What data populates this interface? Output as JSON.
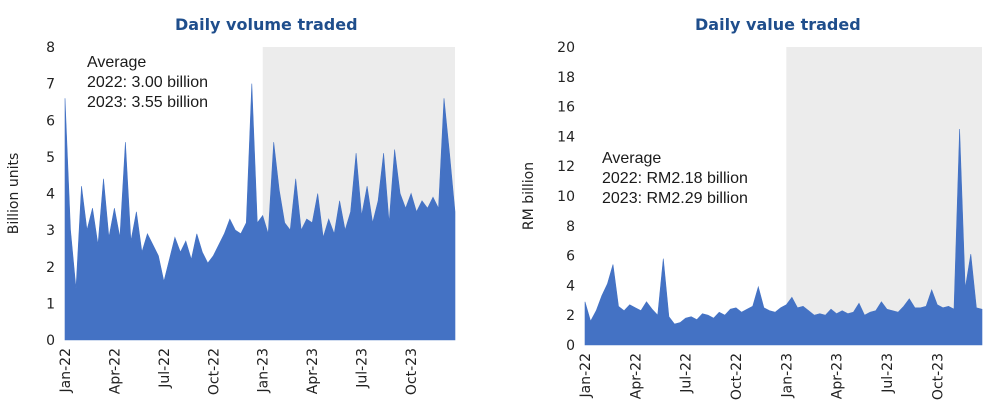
{
  "chart_data": [
    {
      "type": "area",
      "title": "Daily volume traded",
      "ylabel": "Billion units",
      "xlabel": "",
      "ylim": [
        0,
        8
      ],
      "yticks": [
        0,
        1,
        2,
        3,
        4,
        5,
        6,
        7,
        8
      ],
      "x_tick_labels": [
        "Jan-22",
        "Apr-22",
        "Jul-22",
        "Oct-22",
        "Jan-23",
        "Apr-23",
        "Jul-23",
        "Oct-23"
      ],
      "shaded_period": "Jan-23 to Dec-23",
      "annotation": [
        "Average",
        "2022: 3.00 billion",
        "2023: 3.55 billion"
      ],
      "color": "#4472c4",
      "shade_color": "#ececec",
      "x": [
        "Jan-22",
        "Jan-22",
        "Jan-22",
        "Feb-22",
        "Feb-22",
        "Feb-22",
        "Mar-22",
        "Mar-22",
        "Mar-22",
        "Apr-22",
        "Apr-22",
        "Apr-22",
        "May-22",
        "May-22",
        "May-22",
        "Jun-22",
        "Jun-22",
        "Jun-22",
        "Jul-22",
        "Jul-22",
        "Jul-22",
        "Aug-22",
        "Aug-22",
        "Aug-22",
        "Sep-22",
        "Sep-22",
        "Sep-22",
        "Oct-22",
        "Oct-22",
        "Oct-22",
        "Nov-22",
        "Nov-22",
        "Nov-22",
        "Dec-22",
        "Dec-22",
        "Dec-22",
        "Jan-23",
        "Jan-23",
        "Jan-23",
        "Feb-23",
        "Feb-23",
        "Feb-23",
        "Mar-23",
        "Mar-23",
        "Mar-23",
        "Apr-23",
        "Apr-23",
        "Apr-23",
        "May-23",
        "May-23",
        "May-23",
        "Jun-23",
        "Jun-23",
        "Jun-23",
        "Jul-23",
        "Jul-23",
        "Jul-23",
        "Aug-23",
        "Aug-23",
        "Aug-23",
        "Sep-23",
        "Sep-23",
        "Sep-23",
        "Oct-23",
        "Oct-23",
        "Oct-23",
        "Nov-23",
        "Nov-23",
        "Nov-23",
        "Dec-23",
        "Dec-23",
        "Dec-23"
      ],
      "values": [
        6.6,
        3.0,
        1.4,
        4.2,
        3.0,
        3.6,
        2.6,
        4.4,
        2.8,
        3.6,
        2.8,
        5.4,
        2.7,
        3.5,
        2.4,
        2.9,
        2.6,
        2.3,
        1.6,
        2.2,
        2.8,
        2.4,
        2.7,
        2.2,
        2.9,
        2.4,
        2.1,
        2.3,
        2.6,
        2.9,
        3.3,
        3.0,
        2.9,
        3.2,
        7.0,
        3.2,
        3.4,
        2.9,
        5.4,
        4.1,
        3.2,
        3.0,
        4.4,
        3.0,
        3.3,
        3.2,
        4.0,
        2.8,
        3.3,
        2.9,
        3.8,
        3.0,
        3.5,
        5.1,
        3.4,
        4.2,
        3.2,
        3.8,
        5.1,
        3.2,
        5.2,
        4.0,
        3.6,
        4.0,
        3.5,
        3.8,
        3.6,
        3.9,
        3.6,
        6.6,
        5.1,
        3.5
      ]
    },
    {
      "type": "area",
      "title": "Daily value traded",
      "ylabel": "RM billion",
      "xlabel": "",
      "ylim": [
        0,
        20
      ],
      "yticks": [
        0,
        2,
        4,
        6,
        8,
        10,
        12,
        14,
        16,
        18,
        20
      ],
      "x_tick_labels": [
        "Jan-22",
        "Apr-22",
        "Jul-22",
        "Oct-22",
        "Jan-23",
        "Apr-23",
        "Jul-23",
        "Oct-23"
      ],
      "shaded_period": "Jan-23 to Dec-23",
      "annotation": [
        "Average",
        "2022: RM2.18 billion",
        "2023: RM2.29 billion"
      ],
      "color": "#4472c4",
      "shade_color": "#ececec",
      "x": [
        "Jan-22",
        "Jan-22",
        "Jan-22",
        "Feb-22",
        "Feb-22",
        "Feb-22",
        "Mar-22",
        "Mar-22",
        "Mar-22",
        "Apr-22",
        "Apr-22",
        "Apr-22",
        "May-22",
        "May-22",
        "May-22",
        "Jun-22",
        "Jun-22",
        "Jun-22",
        "Jul-22",
        "Jul-22",
        "Jul-22",
        "Aug-22",
        "Aug-22",
        "Aug-22",
        "Sep-22",
        "Sep-22",
        "Sep-22",
        "Oct-22",
        "Oct-22",
        "Oct-22",
        "Nov-22",
        "Nov-22",
        "Nov-22",
        "Dec-22",
        "Dec-22",
        "Dec-22",
        "Jan-23",
        "Jan-23",
        "Jan-23",
        "Feb-23",
        "Feb-23",
        "Feb-23",
        "Mar-23",
        "Mar-23",
        "Mar-23",
        "Apr-23",
        "Apr-23",
        "Apr-23",
        "May-23",
        "May-23",
        "May-23",
        "Jun-23",
        "Jun-23",
        "Jun-23",
        "Jul-23",
        "Jul-23",
        "Jul-23",
        "Aug-23",
        "Aug-23",
        "Aug-23",
        "Sep-23",
        "Sep-23",
        "Sep-23",
        "Oct-23",
        "Oct-23",
        "Oct-23",
        "Nov-23",
        "Nov-23",
        "Nov-23",
        "Dec-23",
        "Dec-23",
        "Dec-23"
      ],
      "values": [
        2.9,
        1.6,
        2.3,
        3.3,
        4.1,
        5.4,
        2.6,
        2.3,
        2.7,
        2.5,
        2.3,
        2.9,
        2.4,
        2.0,
        5.8,
        1.9,
        1.4,
        1.5,
        1.8,
        1.9,
        1.7,
        2.1,
        2.0,
        1.8,
        2.2,
        2.0,
        2.4,
        2.5,
        2.2,
        2.4,
        2.6,
        3.9,
        2.5,
        2.3,
        2.2,
        2.5,
        2.7,
        3.2,
        2.5,
        2.6,
        2.3,
        2.0,
        2.1,
        2.0,
        2.4,
        2.1,
        2.3,
        2.1,
        2.2,
        2.8,
        2.0,
        2.2,
        2.3,
        2.9,
        2.4,
        2.3,
        2.2,
        2.6,
        3.1,
        2.5,
        2.5,
        2.6,
        3.7,
        2.7,
        2.5,
        2.6,
        2.4,
        14.5,
        3.8,
        6.1,
        2.5,
        2.4
      ]
    }
  ]
}
